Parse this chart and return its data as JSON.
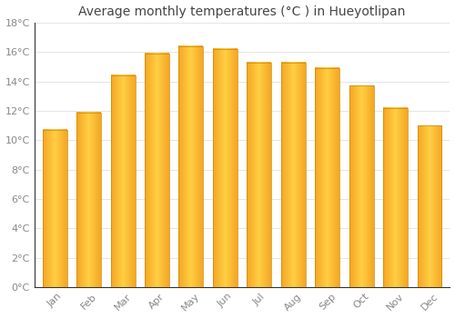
{
  "title": "Average monthly temperatures (°C ) in Hueyotlipan",
  "months": [
    "Jan",
    "Feb",
    "Mar",
    "Apr",
    "May",
    "Jun",
    "Jul",
    "Aug",
    "Sep",
    "Oct",
    "Nov",
    "Dec"
  ],
  "values": [
    10.7,
    11.9,
    14.4,
    15.9,
    16.4,
    16.2,
    15.3,
    15.3,
    14.9,
    13.7,
    12.2,
    11.0
  ],
  "bar_color_left": "#F5A623",
  "bar_color_center": "#FFCF44",
  "bar_color_right": "#F5A623",
  "background_color": "#ffffff",
  "grid_color": "#e0e0e0",
  "text_color": "#888888",
  "spine_color": "#333333",
  "ylim": [
    0,
    18
  ],
  "yticks": [
    0,
    2,
    4,
    6,
    8,
    10,
    12,
    14,
    16,
    18
  ],
  "title_fontsize": 10,
  "tick_fontsize": 8,
  "bar_width": 0.72
}
